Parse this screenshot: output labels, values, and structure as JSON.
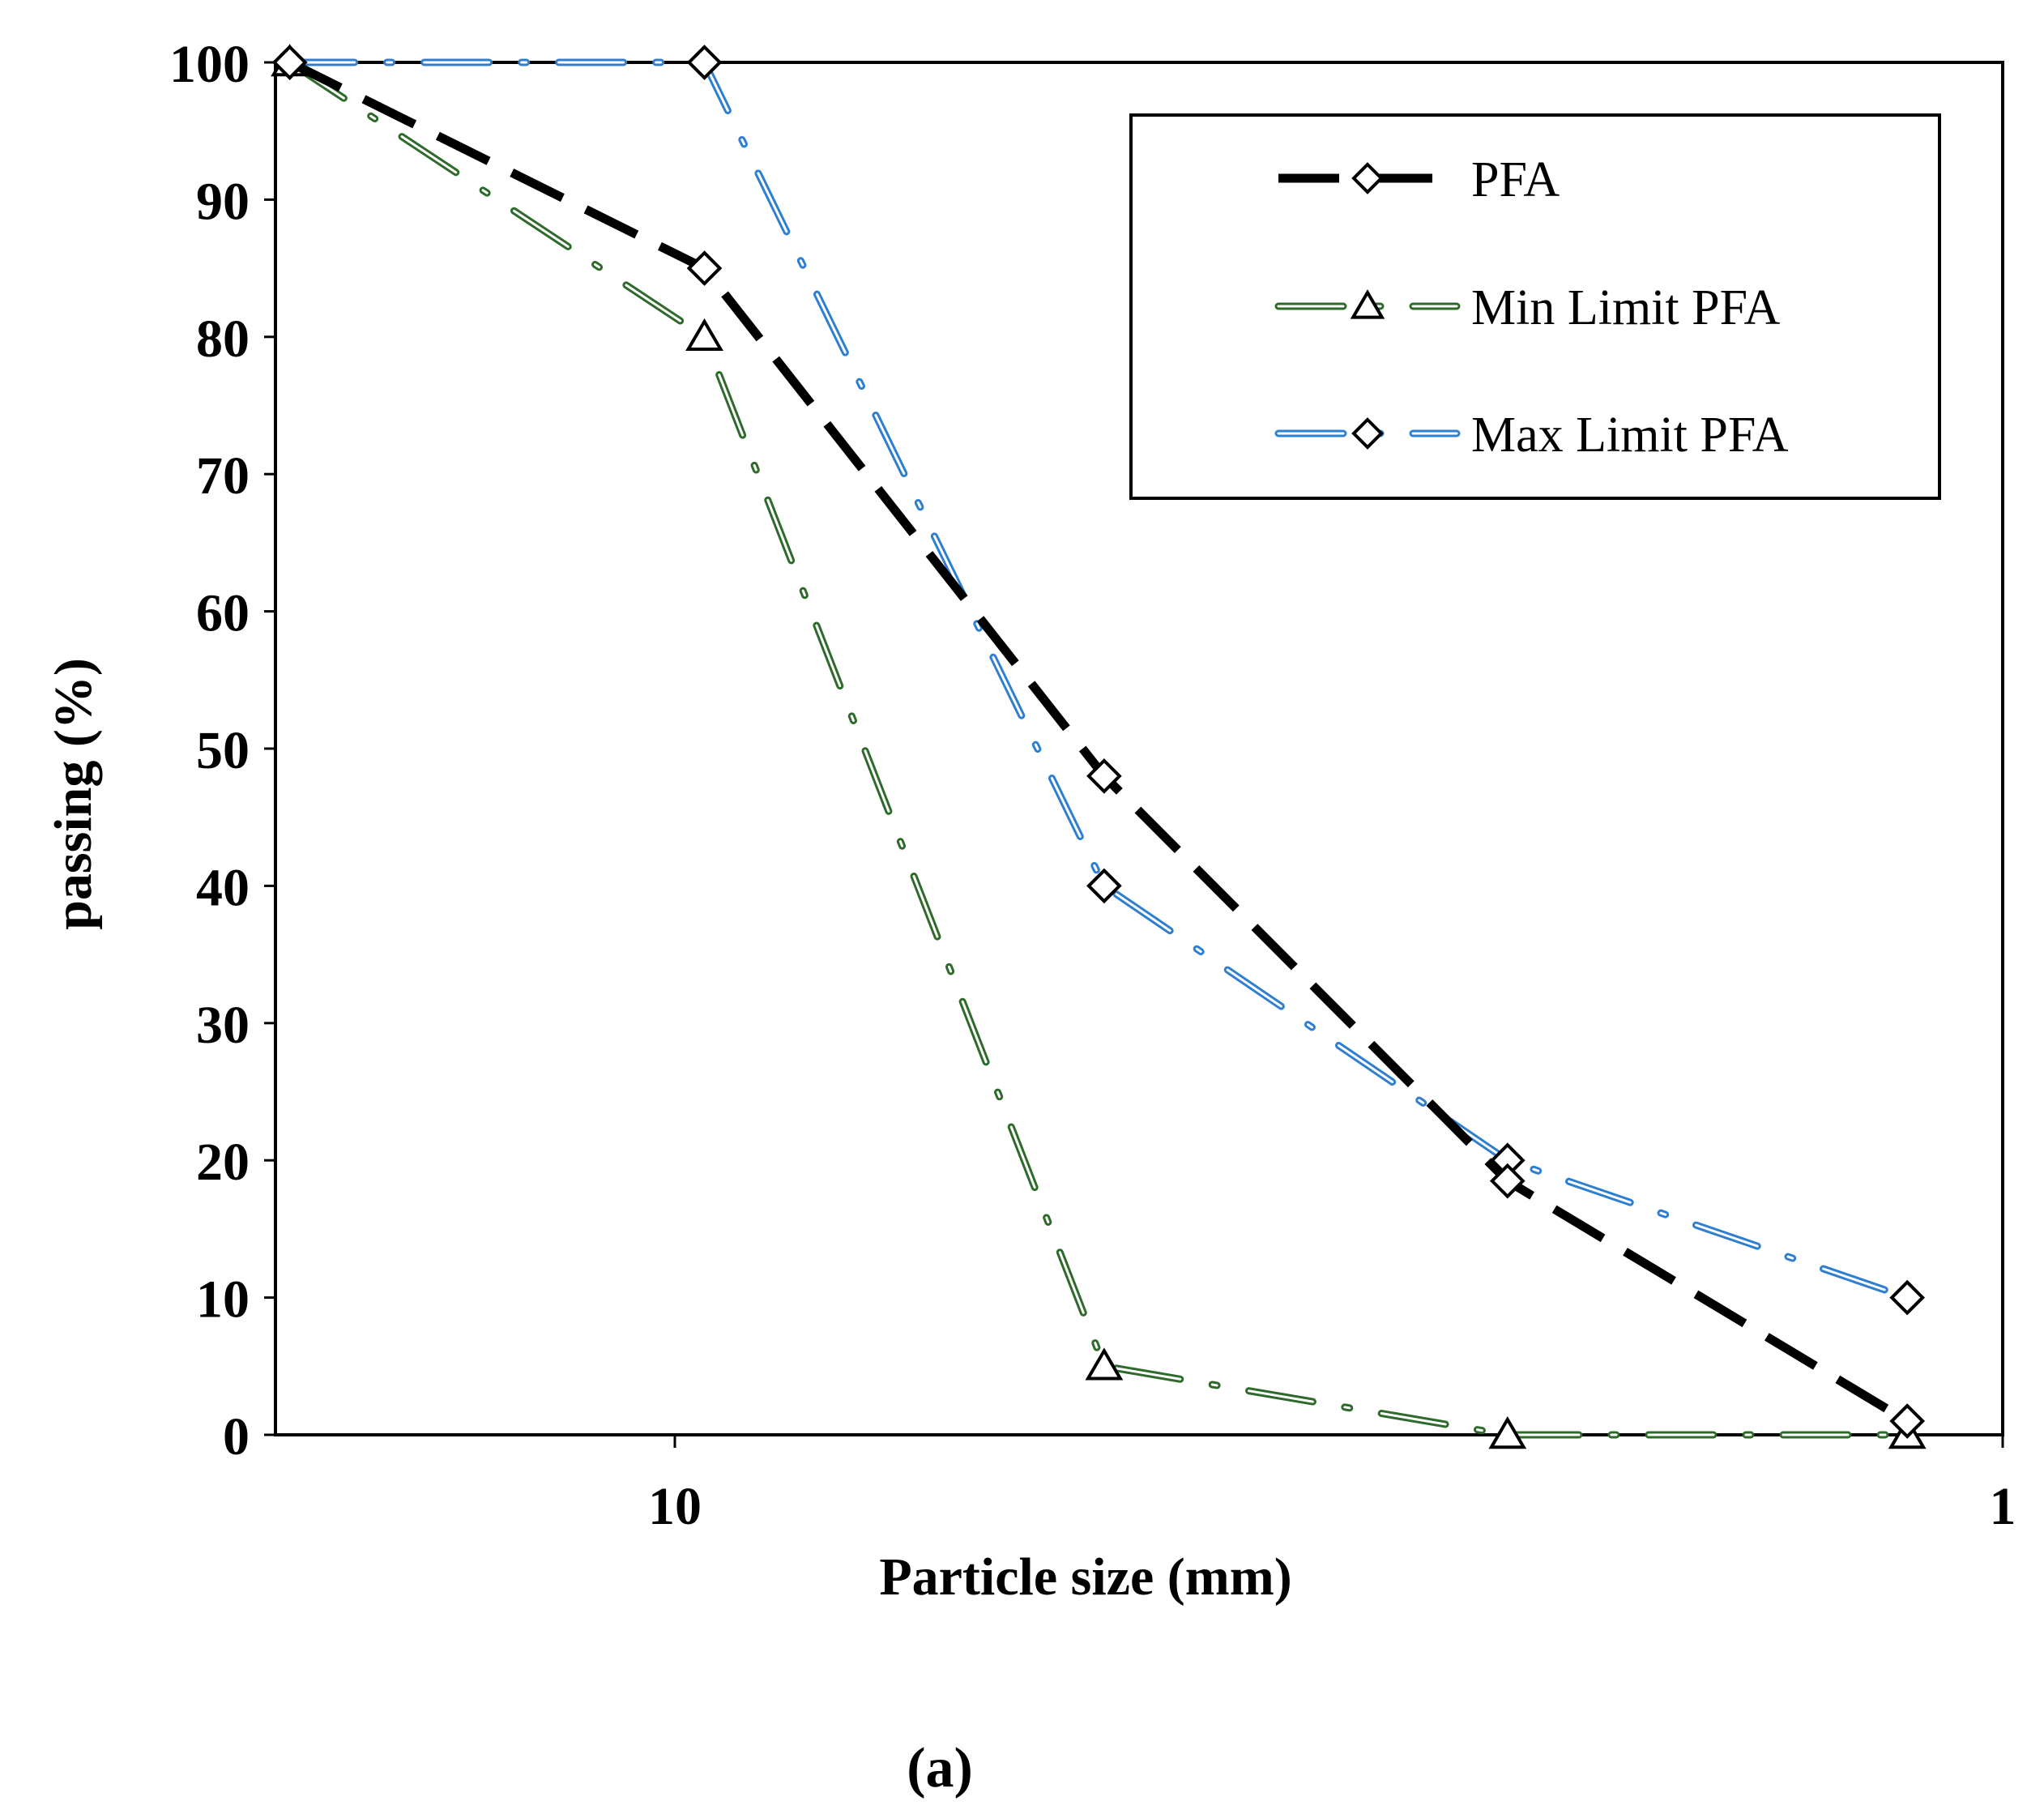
{
  "chart_data": {
    "type": "line",
    "title": "",
    "xlabel": "Particle size (mm)",
    "ylabel": "passing (%)",
    "caption": "(a)",
    "x_scale": "log",
    "x_reversed": true,
    "xlim": [
      20,
      1
    ],
    "ylim": [
      0,
      100
    ],
    "x_ticks": [
      10,
      1
    ],
    "x_tick_labels": [
      "10",
      "1"
    ],
    "y_ticks": [
      0,
      10,
      20,
      30,
      40,
      50,
      60,
      70,
      80,
      90,
      100
    ],
    "y_tick_labels": [
      "0",
      "10",
      "20",
      "30",
      "40",
      "50",
      "60",
      "70",
      "80",
      "90",
      "100"
    ],
    "grid": false,
    "legend_position": "top-right",
    "series": [
      {
        "name": "PFA",
        "color": "#000000",
        "marker": "diamond",
        "x": [
          19.5,
          9.5,
          4.75,
          2.36,
          1.18
        ],
        "values": [
          100,
          85,
          48,
          18.5,
          1
        ]
      },
      {
        "name": "Min Limit PFA",
        "color": "#2e6b2b",
        "marker": "triangle",
        "x": [
          19.5,
          9.5,
          4.75,
          2.36,
          1.18
        ],
        "values": [
          100,
          80,
          5,
          0,
          0
        ]
      },
      {
        "name": "Max Limit PFA",
        "color": "#2f7fd0",
        "marker": "diamond",
        "x": [
          19.5,
          9.5,
          4.75,
          2.36,
          1.18
        ],
        "values": [
          100,
          100,
          40,
          20,
          10
        ]
      }
    ]
  }
}
